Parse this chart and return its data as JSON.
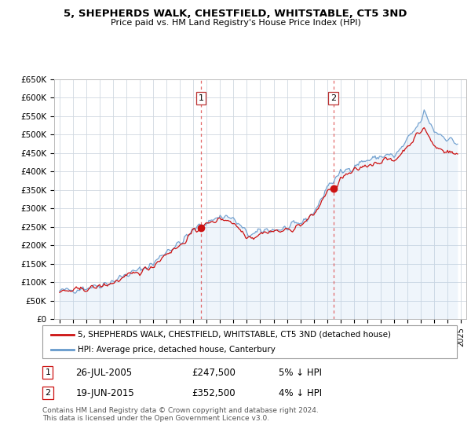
{
  "title": "5, SHEPHERDS WALK, CHESTFIELD, WHITSTABLE, CT5 3ND",
  "subtitle": "Price paid vs. HM Land Registry's House Price Index (HPI)",
  "background_color": "#ffffff",
  "plot_bg_color": "#ffffff",
  "grid_color": "#d0d8e0",
  "line1_color": "#cc1111",
  "line2_color": "#6699cc",
  "line2_fill_color": "#ddeeff",
  "ylim": [
    0,
    650000
  ],
  "yticks": [
    0,
    50000,
    100000,
    150000,
    200000,
    250000,
    300000,
    350000,
    400000,
    450000,
    500000,
    550000,
    600000,
    650000
  ],
  "ytick_labels": [
    "£0",
    "£50K",
    "£100K",
    "£150K",
    "£200K",
    "£250K",
    "£300K",
    "£350K",
    "£400K",
    "£450K",
    "£500K",
    "£550K",
    "£600K",
    "£650K"
  ],
  "xtick_years": [
    1995,
    1996,
    1997,
    1998,
    1999,
    2000,
    2001,
    2002,
    2003,
    2004,
    2005,
    2006,
    2007,
    2008,
    2009,
    2010,
    2011,
    2012,
    2013,
    2014,
    2015,
    2016,
    2017,
    2018,
    2019,
    2020,
    2021,
    2022,
    2023,
    2024,
    2025
  ],
  "sale1_x": 2005.57,
  "sale1_y": 247500,
  "sale2_x": 2015.46,
  "sale2_y": 352500,
  "legend_line1": "5, SHEPHERDS WALK, CHESTFIELD, WHITSTABLE, CT5 3ND (detached house)",
  "legend_line2": "HPI: Average price, detached house, Canterbury",
  "footnote": "Contains HM Land Registry data © Crown copyright and database right 2024.\nThis data is licensed under the Open Government Licence v3.0."
}
